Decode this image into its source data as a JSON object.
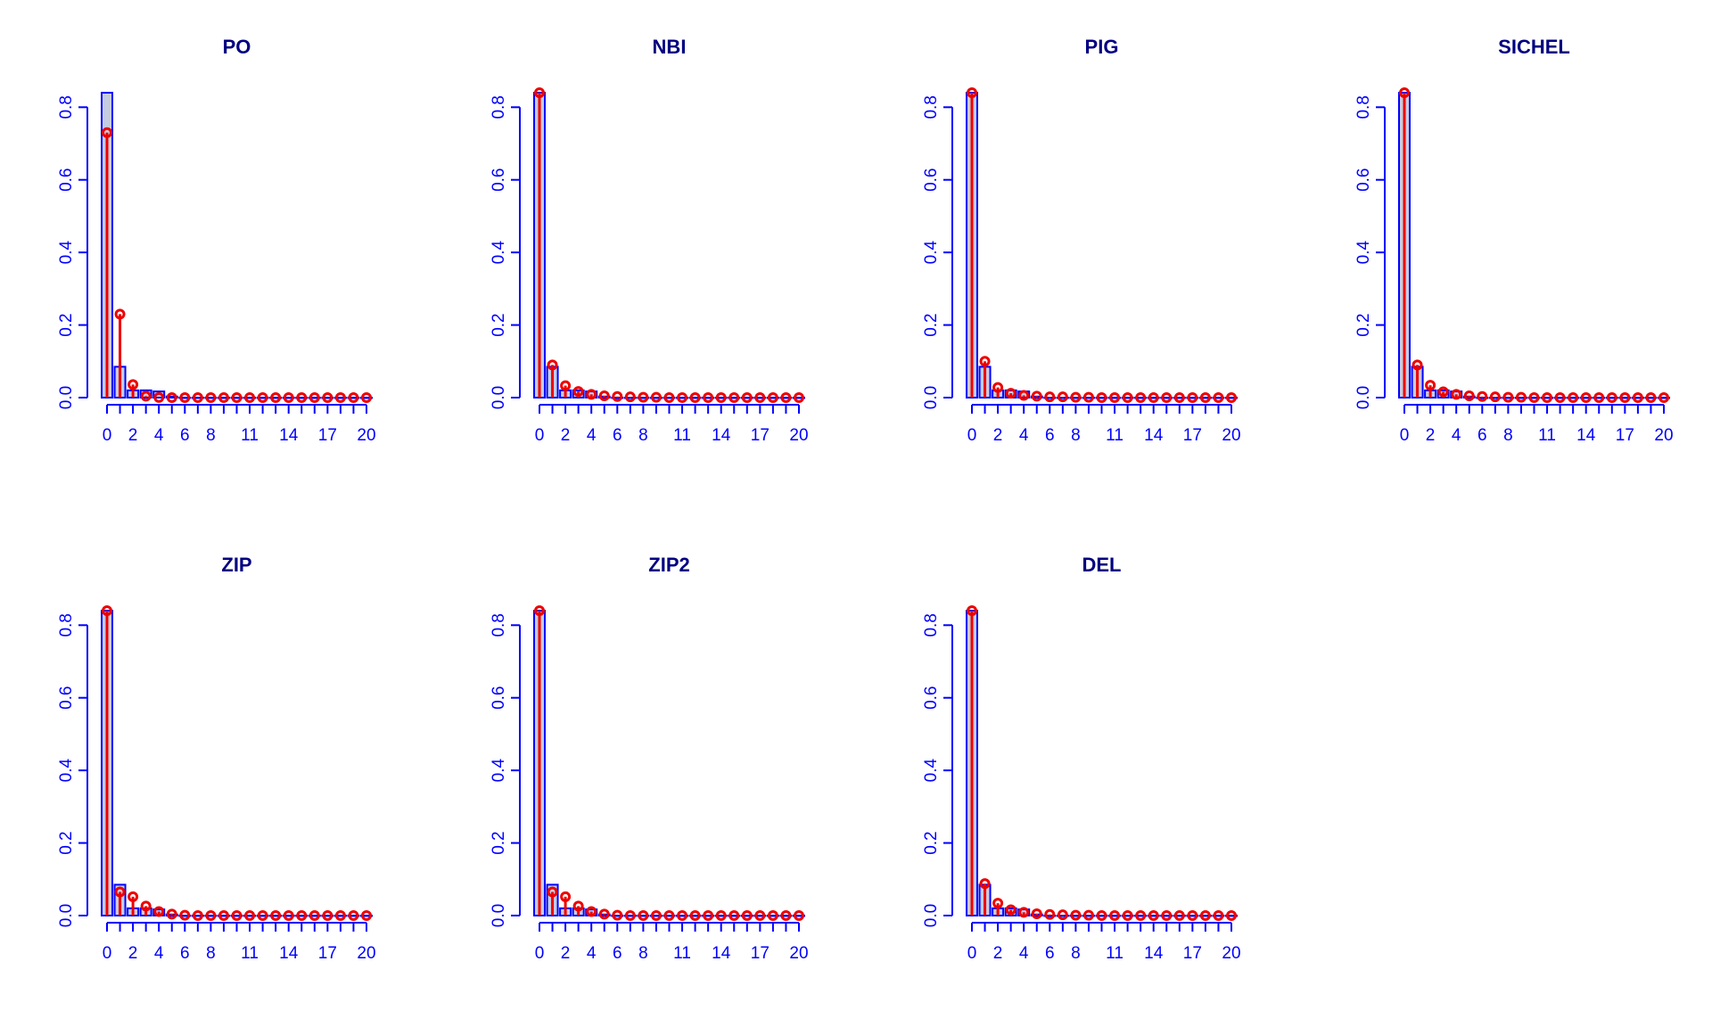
{
  "colors": {
    "title": "#000080",
    "axis": "#0000ff",
    "bar_stroke": "#0000ff",
    "bar_fill": "#c6cce0",
    "fitted": "#ee0000"
  },
  "chart_data": [
    {
      "type": "bar",
      "title": "PO",
      "xlabel": "",
      "ylabel": "",
      "x_tick_labels": [
        "0",
        "2",
        "4",
        "6",
        "8",
        "11",
        "14",
        "17",
        "20"
      ],
      "y_tick_labels": [
        "0.0",
        "0.2",
        "0.4",
        "0.6",
        "0.8"
      ],
      "x": [
        0,
        1,
        2,
        3,
        4,
        5,
        6,
        7,
        8,
        9,
        10,
        11,
        12,
        13,
        14,
        15,
        16,
        17,
        18,
        19,
        20
      ],
      "ylim": [
        0,
        0.84
      ],
      "series": [
        {
          "kind": "observed",
          "values": [
            0.84,
            0.085,
            0.02,
            0.02,
            0.017,
            0.003,
            0,
            0,
            0,
            0,
            0,
            0,
            0,
            0,
            0,
            0,
            0,
            0,
            0,
            0,
            0
          ]
        },
        {
          "kind": "fitted",
          "values": [
            0.73,
            0.23,
            0.036,
            0.004,
            0.0003,
            0,
            0,
            0,
            0,
            0,
            0,
            0,
            0,
            0,
            0,
            0,
            0,
            0,
            0,
            0,
            0
          ]
        }
      ]
    },
    {
      "type": "bar",
      "title": "NBI",
      "xlabel": "",
      "ylabel": "",
      "x_tick_labels": [
        "0",
        "2",
        "4",
        "6",
        "8",
        "11",
        "14",
        "17",
        "20"
      ],
      "y_tick_labels": [
        "0.0",
        "0.2",
        "0.4",
        "0.6",
        "0.8"
      ],
      "x": [
        0,
        1,
        2,
        3,
        4,
        5,
        6,
        7,
        8,
        9,
        10,
        11,
        12,
        13,
        14,
        15,
        16,
        17,
        18,
        19,
        20
      ],
      "ylim": [
        0,
        0.84
      ],
      "series": [
        {
          "kind": "observed",
          "values": [
            0.84,
            0.085,
            0.02,
            0.02,
            0.017,
            0.003,
            0,
            0,
            0,
            0,
            0,
            0,
            0,
            0,
            0,
            0,
            0,
            0,
            0,
            0,
            0
          ]
        },
        {
          "kind": "fitted",
          "values": [
            0.84,
            0.09,
            0.033,
            0.017,
            0.009,
            0.005,
            0.003,
            0.002,
            0.001,
            0.001,
            0,
            0,
            0,
            0,
            0,
            0,
            0,
            0,
            0,
            0,
            0
          ]
        }
      ]
    },
    {
      "type": "bar",
      "title": "PIG",
      "xlabel": "",
      "ylabel": "",
      "x_tick_labels": [
        "0",
        "2",
        "4",
        "6",
        "8",
        "11",
        "14",
        "17",
        "20"
      ],
      "y_tick_labels": [
        "0.0",
        "0.2",
        "0.4",
        "0.6",
        "0.8"
      ],
      "x": [
        0,
        1,
        2,
        3,
        4,
        5,
        6,
        7,
        8,
        9,
        10,
        11,
        12,
        13,
        14,
        15,
        16,
        17,
        18,
        19,
        20
      ],
      "ylim": [
        0,
        0.84
      ],
      "series": [
        {
          "kind": "observed",
          "values": [
            0.84,
            0.085,
            0.02,
            0.02,
            0.017,
            0.003,
            0,
            0,
            0,
            0,
            0,
            0,
            0,
            0,
            0,
            0,
            0,
            0,
            0,
            0,
            0
          ]
        },
        {
          "kind": "fitted",
          "values": [
            0.84,
            0.1,
            0.028,
            0.012,
            0.006,
            0.004,
            0.002,
            0.002,
            0.001,
            0.001,
            0,
            0,
            0,
            0,
            0,
            0,
            0,
            0,
            0,
            0,
            0
          ]
        }
      ]
    },
    {
      "type": "bar",
      "title": "SICHEL",
      "xlabel": "",
      "ylabel": "",
      "x_tick_labels": [
        "0",
        "2",
        "4",
        "6",
        "8",
        "11",
        "14",
        "17",
        "20"
      ],
      "y_tick_labels": [
        "0.0",
        "0.2",
        "0.4",
        "0.6",
        "0.8"
      ],
      "x": [
        0,
        1,
        2,
        3,
        4,
        5,
        6,
        7,
        8,
        9,
        10,
        11,
        12,
        13,
        14,
        15,
        16,
        17,
        18,
        19,
        20
      ],
      "ylim": [
        0,
        0.84
      ],
      "series": [
        {
          "kind": "observed",
          "values": [
            0.84,
            0.085,
            0.02,
            0.02,
            0.017,
            0.003,
            0,
            0,
            0,
            0,
            0,
            0,
            0,
            0,
            0,
            0,
            0,
            0,
            0,
            0,
            0
          ]
        },
        {
          "kind": "fitted",
          "values": [
            0.84,
            0.09,
            0.034,
            0.016,
            0.009,
            0.005,
            0.003,
            0.002,
            0.001,
            0.001,
            0,
            0,
            0,
            0,
            0,
            0,
            0,
            0,
            0,
            0,
            0
          ]
        }
      ]
    },
    {
      "type": "bar",
      "title": "ZIP",
      "xlabel": "",
      "ylabel": "",
      "x_tick_labels": [
        "0",
        "2",
        "4",
        "6",
        "8",
        "11",
        "14",
        "17",
        "20"
      ],
      "y_tick_labels": [
        "0.0",
        "0.2",
        "0.4",
        "0.6",
        "0.8"
      ],
      "x": [
        0,
        1,
        2,
        3,
        4,
        5,
        6,
        7,
        8,
        9,
        10,
        11,
        12,
        13,
        14,
        15,
        16,
        17,
        18,
        19,
        20
      ],
      "ylim": [
        0,
        0.84
      ],
      "series": [
        {
          "kind": "observed",
          "values": [
            0.84,
            0.085,
            0.02,
            0.02,
            0.017,
            0.003,
            0,
            0,
            0,
            0,
            0,
            0,
            0,
            0,
            0,
            0,
            0,
            0,
            0,
            0,
            0
          ]
        },
        {
          "kind": "fitted",
          "values": [
            0.84,
            0.065,
            0.052,
            0.026,
            0.011,
            0.004,
            0.001,
            0,
            0,
            0,
            0,
            0,
            0,
            0,
            0,
            0,
            0,
            0,
            0,
            0,
            0
          ]
        }
      ]
    },
    {
      "type": "bar",
      "title": "ZIP2",
      "xlabel": "",
      "ylabel": "",
      "x_tick_labels": [
        "0",
        "2",
        "4",
        "6",
        "8",
        "11",
        "14",
        "17",
        "20"
      ],
      "y_tick_labels": [
        "0.0",
        "0.2",
        "0.4",
        "0.6",
        "0.8"
      ],
      "x": [
        0,
        1,
        2,
        3,
        4,
        5,
        6,
        7,
        8,
        9,
        10,
        11,
        12,
        13,
        14,
        15,
        16,
        17,
        18,
        19,
        20
      ],
      "ylim": [
        0,
        0.84
      ],
      "series": [
        {
          "kind": "observed",
          "values": [
            0.84,
            0.085,
            0.02,
            0.02,
            0.017,
            0.003,
            0,
            0,
            0,
            0,
            0,
            0,
            0,
            0,
            0,
            0,
            0,
            0,
            0,
            0,
            0
          ]
        },
        {
          "kind": "fitted",
          "values": [
            0.84,
            0.065,
            0.052,
            0.026,
            0.011,
            0.004,
            0.001,
            0,
            0,
            0,
            0,
            0,
            0,
            0,
            0,
            0,
            0,
            0,
            0,
            0,
            0
          ]
        }
      ]
    },
    {
      "type": "bar",
      "title": "DEL",
      "xlabel": "",
      "ylabel": "",
      "x_tick_labels": [
        "0",
        "2",
        "4",
        "6",
        "8",
        "11",
        "14",
        "17",
        "20"
      ],
      "y_tick_labels": [
        "0.0",
        "0.2",
        "0.4",
        "0.6",
        "0.8"
      ],
      "x": [
        0,
        1,
        2,
        3,
        4,
        5,
        6,
        7,
        8,
        9,
        10,
        11,
        12,
        13,
        14,
        15,
        16,
        17,
        18,
        19,
        20
      ],
      "ylim": [
        0,
        0.84
      ],
      "series": [
        {
          "kind": "observed",
          "values": [
            0.84,
            0.085,
            0.02,
            0.02,
            0.017,
            0.003,
            0,
            0,
            0,
            0,
            0,
            0,
            0,
            0,
            0,
            0,
            0,
            0,
            0,
            0,
            0
          ]
        },
        {
          "kind": "fitted",
          "values": [
            0.84,
            0.088,
            0.034,
            0.016,
            0.009,
            0.005,
            0.003,
            0.002,
            0.001,
            0.001,
            0,
            0,
            0,
            0,
            0,
            0,
            0,
            0,
            0,
            0,
            0
          ]
        }
      ]
    }
  ]
}
